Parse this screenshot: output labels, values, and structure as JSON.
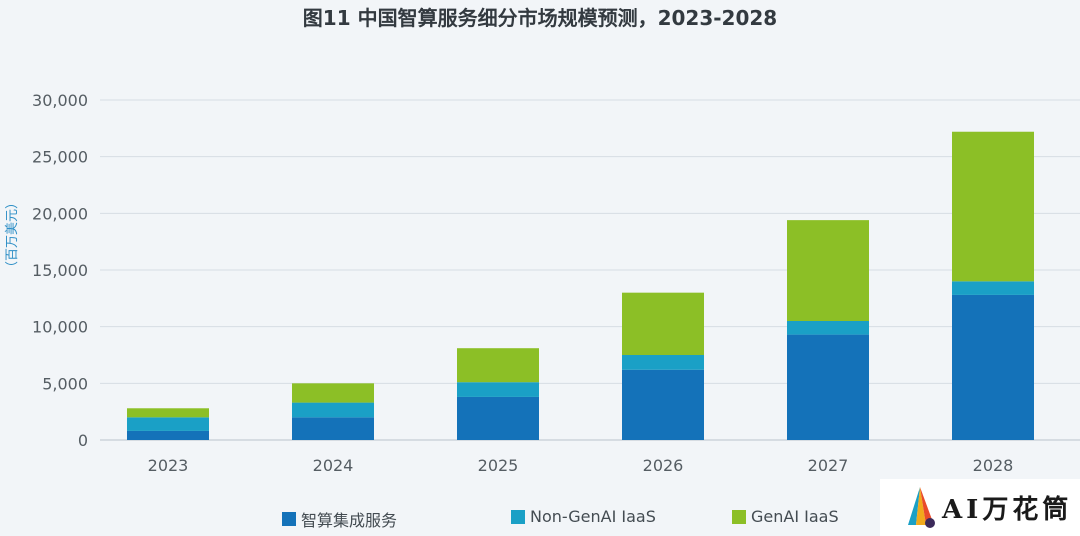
{
  "title": "图11 中国智算服务细分市场规模预测，2023-2028",
  "chart_data": {
    "type": "bar",
    "stacked": true,
    "title": "图11 中国智算服务细分市场规模预测，2023-2028",
    "ylabel": "（百万美元）",
    "xlabel": "",
    "ylim": [
      0,
      30000
    ],
    "yticks": [
      "0",
      "5,000",
      "10,000",
      "15,000",
      "20,000",
      "25,000",
      "30,000"
    ],
    "ytick_values": [
      0,
      5000,
      10000,
      15000,
      20000,
      25000,
      30000
    ],
    "grid": true,
    "legend_position": "bottom",
    "categories": [
      "2023",
      "2024",
      "2025",
      "2026",
      "2027",
      "2028"
    ],
    "series": [
      {
        "name": "智算集成服务",
        "color": "#1472b9",
        "values": [
          800,
          2000,
          3800,
          6200,
          9300,
          12800
        ]
      },
      {
        "name": "Non-GenAI IaaS",
        "color": "#1aa0c6",
        "values": [
          1200,
          1300,
          1300,
          1300,
          1200,
          1200
        ]
      },
      {
        "name": "GenAI IaaS",
        "color": "#8cbf26",
        "values": [
          800,
          1700,
          3000,
          5500,
          8900,
          13200
        ]
      }
    ]
  },
  "watermark": {
    "text": "AI万花筒"
  }
}
